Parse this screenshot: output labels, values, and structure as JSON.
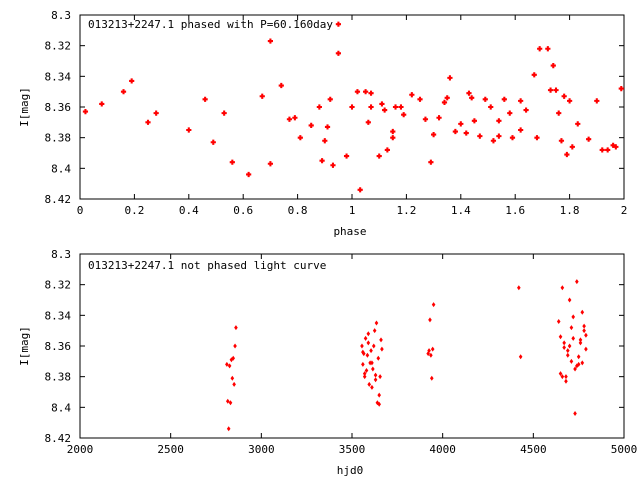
{
  "chart_data": [
    {
      "type": "scatter",
      "title": "013213+2247.1 phased with P=60.160day",
      "xlabel": "phase",
      "ylabel": "I[mag]",
      "xlim": [
        0,
        2
      ],
      "ylim": [
        8.3,
        8.42
      ],
      "y_inverted": true,
      "x_ticks": [
        "0",
        "0.2",
        "0.4",
        "0.6",
        "0.8",
        "1",
        "1.2",
        "1.4",
        "1.6",
        "1.8",
        "2"
      ],
      "y_ticks": [
        "8.3",
        "8.32",
        "8.34",
        "8.36",
        "8.38",
        "8.4",
        "8.42"
      ],
      "grid": false,
      "marker_color": "#ff0000",
      "series": [
        {
          "x": [
            0.02,
            0.08,
            0.16,
            0.19,
            0.25,
            0.28,
            0.4,
            0.46,
            0.49,
            0.53,
            0.56,
            0.62,
            0.67,
            0.7,
            0.7,
            0.74,
            0.77,
            0.79,
            0.81,
            0.85,
            0.88,
            0.89,
            0.9,
            0.91,
            0.92,
            0.93,
            0.95,
            0.95,
            0.98,
            1.0,
            1.02,
            1.03,
            1.05,
            1.06,
            1.07,
            1.07,
            1.1,
            1.11,
            1.12,
            1.13,
            1.15,
            1.15,
            1.16,
            1.18,
            1.19,
            1.22,
            1.25,
            1.27,
            1.29,
            1.3,
            1.32,
            1.34,
            1.35,
            1.36,
            1.38,
            1.4,
            1.42,
            1.43,
            1.44,
            1.45,
            1.47,
            1.49,
            1.51,
            1.52,
            1.54,
            1.54,
            1.56,
            1.58,
            1.59,
            1.62,
            1.62,
            1.64,
            1.67,
            1.68,
            1.69,
            1.72,
            1.73,
            1.74,
            1.75,
            1.76,
            1.77,
            1.78,
            1.79,
            1.8,
            1.81,
            1.83,
            1.87,
            1.9,
            1.92,
            1.94,
            1.96,
            1.97,
            1.99
          ],
          "y": [
            8.363,
            8.358,
            8.35,
            8.343,
            8.37,
            8.364,
            8.375,
            8.355,
            8.383,
            8.364,
            8.396,
            8.404,
            8.353,
            8.317,
            8.397,
            8.346,
            8.368,
            8.367,
            8.38,
            8.372,
            8.36,
            8.395,
            8.382,
            8.373,
            8.355,
            8.398,
            8.325,
            8.306,
            8.392,
            8.36,
            8.35,
            8.414,
            8.35,
            8.37,
            8.36,
            8.351,
            8.392,
            8.358,
            8.362,
            8.388,
            8.376,
            8.38,
            8.36,
            8.36,
            8.365,
            8.352,
            8.355,
            8.368,
            8.396,
            8.378,
            8.367,
            8.357,
            8.354,
            8.341,
            8.376,
            8.371,
            8.377,
            8.351,
            8.354,
            8.369,
            8.379,
            8.355,
            8.36,
            8.382,
            8.379,
            8.369,
            8.355,
            8.364,
            8.38,
            8.356,
            8.375,
            8.362,
            8.339,
            8.38,
            8.322,
            8.322,
            8.349,
            8.333,
            8.349,
            8.364,
            8.382,
            8.353,
            8.391,
            8.356,
            8.386,
            8.371,
            8.381,
            8.356,
            8.388,
            8.388,
            8.385,
            8.386,
            8.348
          ]
        }
      ]
    },
    {
      "type": "scatter",
      "title": "013213+2247.1 not phased light curve",
      "xlabel": "hjd0",
      "ylabel": "I[mag]",
      "xlim": [
        2000,
        5000
      ],
      "ylim": [
        8.3,
        8.42
      ],
      "y_inverted": true,
      "x_ticks": [
        "2000",
        "2500",
        "3000",
        "3500",
        "4000",
        "4500",
        "5000"
      ],
      "y_ticks": [
        "8.3",
        "8.32",
        "8.34",
        "8.36",
        "8.38",
        "8.4",
        "8.42"
      ],
      "grid": false,
      "marker_color": "#ff0000",
      "series": [
        {
          "x": [
            2810,
            2815,
            2820,
            2825,
            2830,
            2835,
            2840,
            2845,
            2850,
            2855,
            2860,
            3555,
            3560,
            3565,
            3570,
            3575,
            3580,
            3585,
            3590,
            3595,
            3600,
            3605,
            3610,
            3615,
            3620,
            3625,
            3630,
            3635,
            3640,
            3645,
            3650,
            3655,
            3660,
            3665,
            3560,
            3570,
            3590,
            3610,
            3630,
            3650,
            3920,
            3925,
            3930,
            3935,
            3940,
            3945,
            3950,
            4420,
            4430,
            4640,
            4650,
            4660,
            4670,
            4680,
            4690,
            4700,
            4710,
            4720,
            4730,
            4740,
            4750,
            4760,
            4770,
            4780,
            4790,
            4660,
            4680,
            4700,
            4720,
            4740,
            4760,
            4780,
            4650,
            4690,
            4730,
            4770,
            4670,
            4710,
            4750,
            4790
          ],
          "y": [
            8.372,
            8.396,
            8.414,
            8.373,
            8.397,
            8.369,
            8.381,
            8.368,
            8.385,
            8.36,
            8.348,
            8.36,
            8.372,
            8.365,
            8.38,
            8.355,
            8.376,
            8.366,
            8.352,
            8.385,
            8.371,
            8.363,
            8.387,
            8.375,
            8.36,
            8.35,
            8.382,
            8.345,
            8.397,
            8.368,
            8.398,
            8.38,
            8.356,
            8.362,
            8.364,
            8.378,
            8.358,
            8.371,
            8.379,
            8.392,
            8.365,
            8.363,
            8.343,
            8.366,
            8.381,
            8.362,
            8.333,
            8.322,
            8.367,
            8.344,
            8.378,
            8.322,
            8.358,
            8.38,
            8.366,
            8.33,
            8.37,
            8.355,
            8.404,
            8.318,
            8.367,
            8.358,
            8.371,
            8.347,
            8.362,
            8.38,
            8.383,
            8.36,
            8.341,
            8.373,
            8.356,
            8.35,
            8.354,
            8.363,
            8.375,
            8.338,
            8.361,
            8.348,
            8.372,
            8.353
          ]
        }
      ]
    }
  ]
}
